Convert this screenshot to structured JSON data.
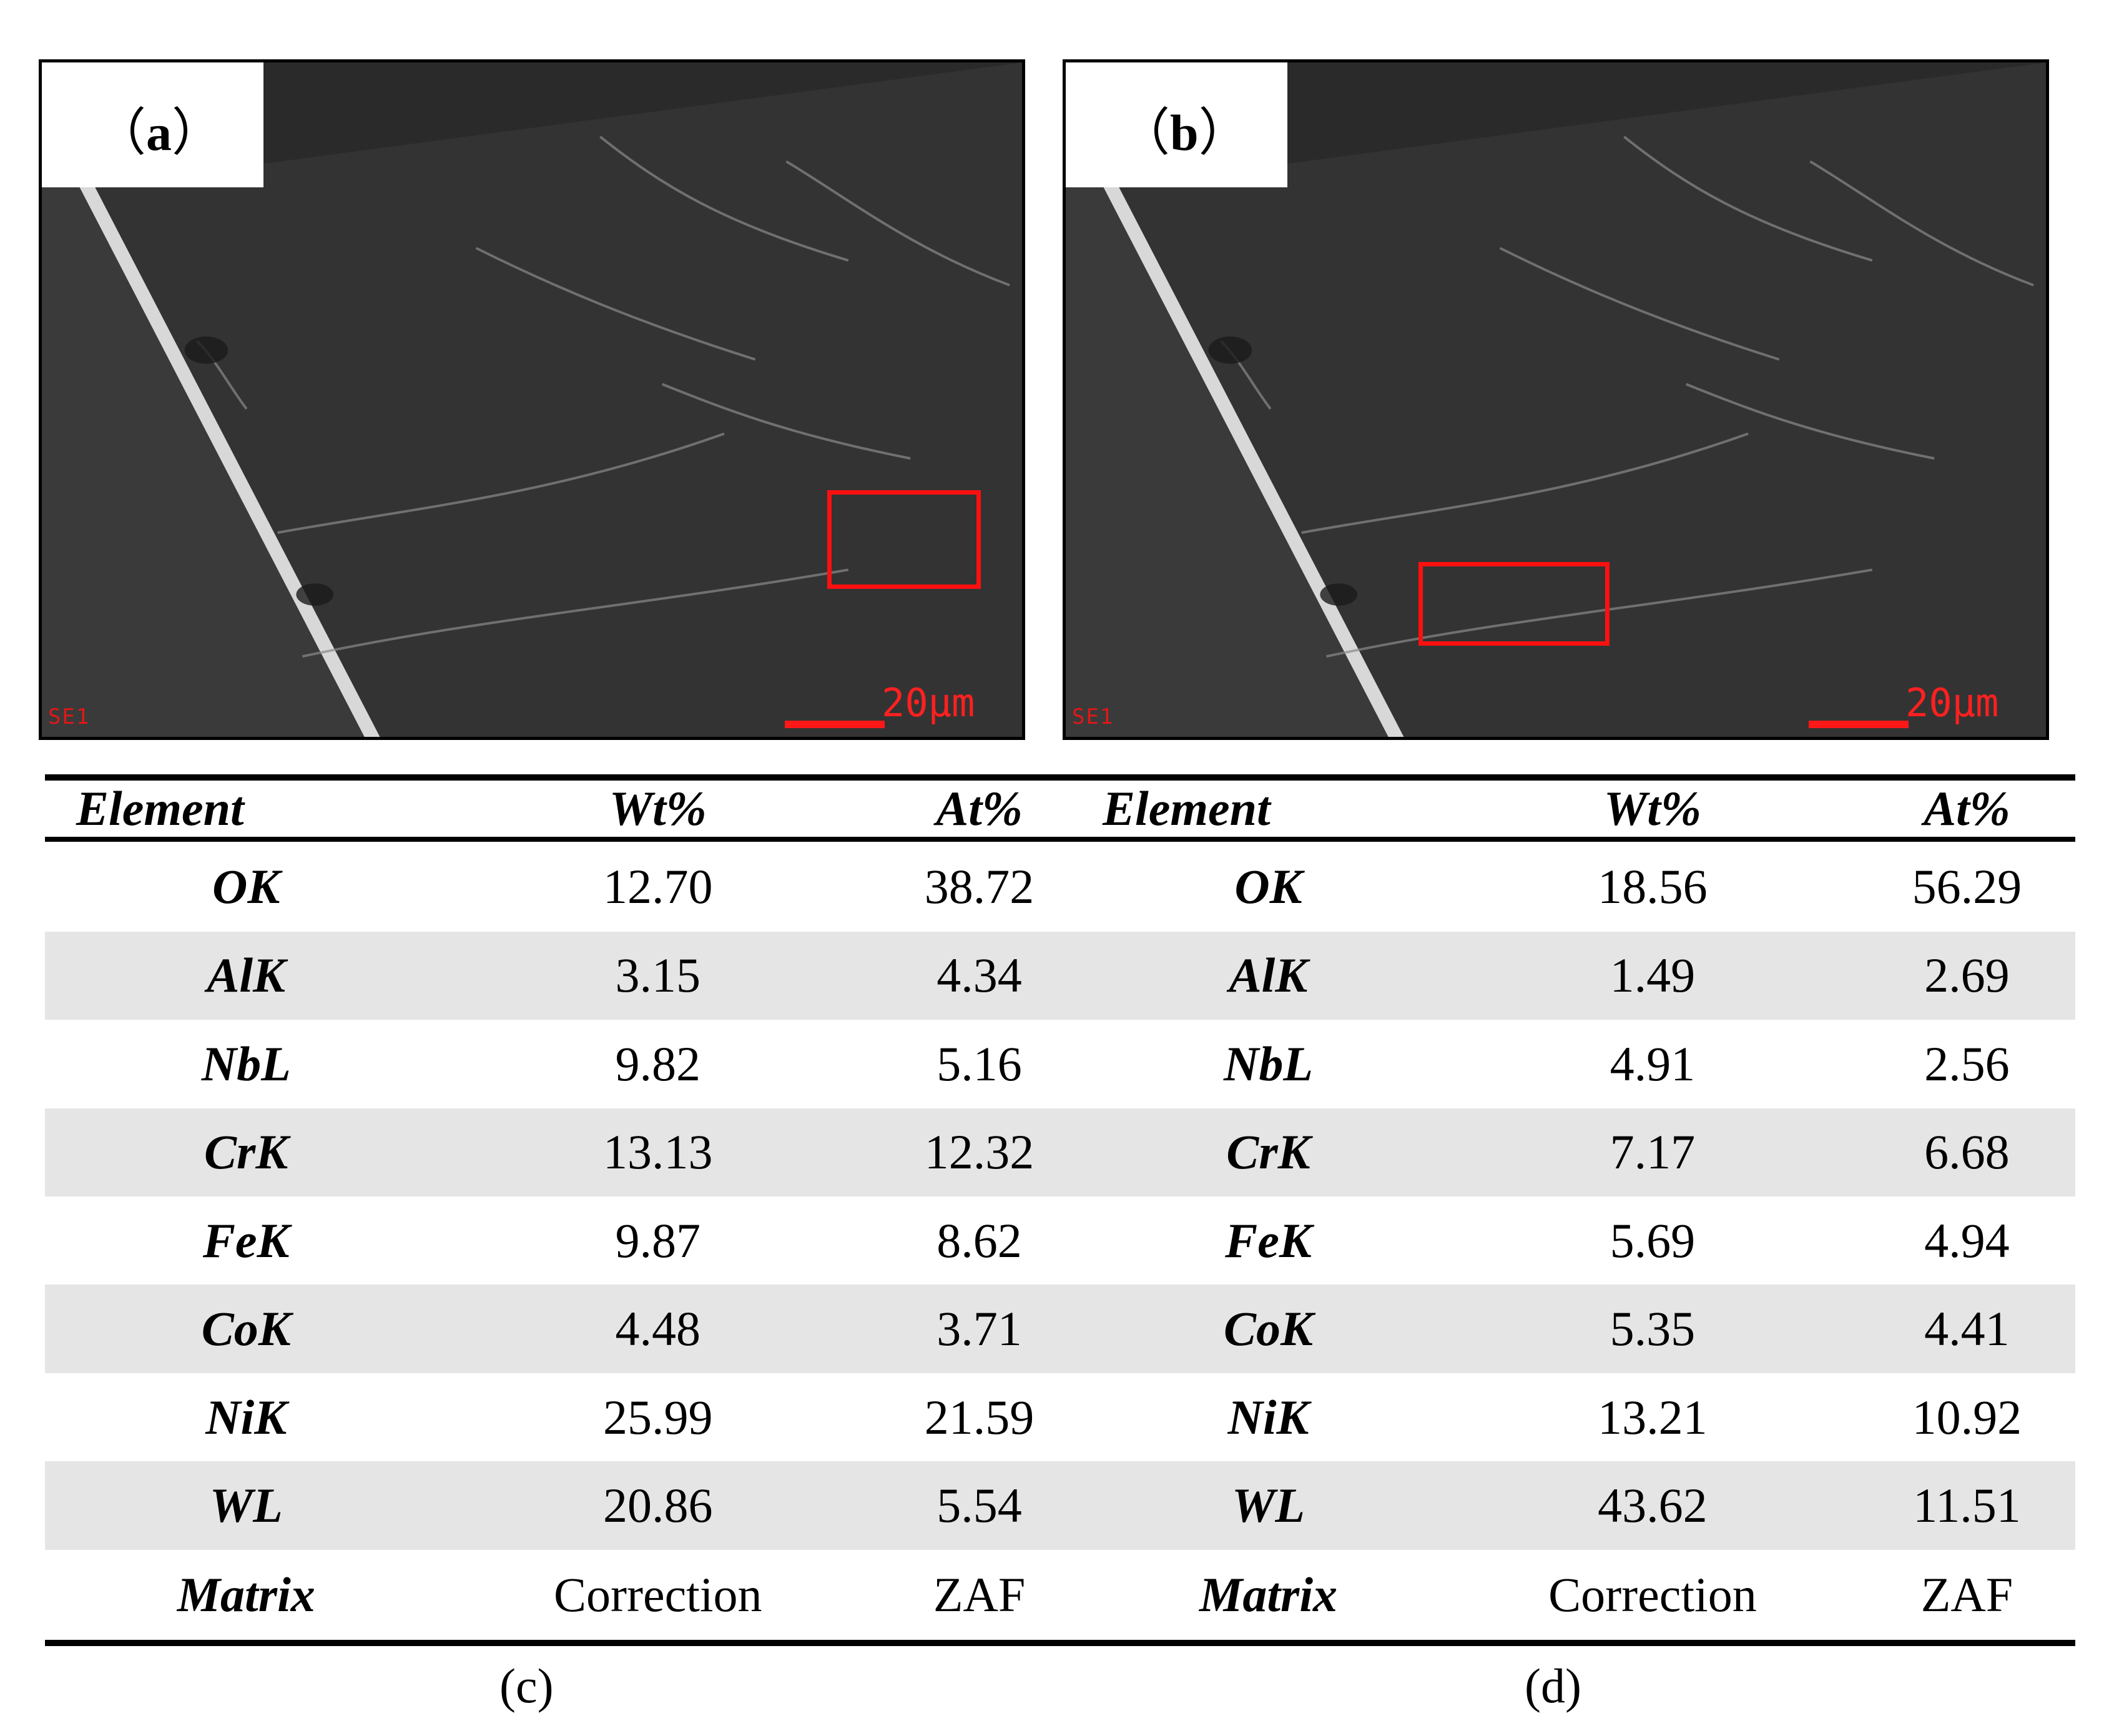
{
  "figure": {
    "panels": [
      {
        "label": "a",
        "microscope_tag": "SE1",
        "scale_label": "20μm"
      },
      {
        "label": "b",
        "microscope_tag": "SE1",
        "scale_label": "20μm"
      }
    ],
    "roi_color": "#ff1010"
  },
  "tables": [
    {
      "caption": "(c)",
      "headers": [
        "Element",
        "Wt%",
        "At%"
      ],
      "rows": [
        [
          "OK",
          "12.70",
          "38.72"
        ],
        [
          "AlK",
          "3.15",
          "4.34"
        ],
        [
          "NbL",
          "9.82",
          "5.16"
        ],
        [
          "CrK",
          "13.13",
          "12.32"
        ],
        [
          "FeK",
          "9.87",
          "8.62"
        ],
        [
          "CoK",
          "4.48",
          "3.71"
        ],
        [
          "NiK",
          "25.99",
          "21.59"
        ],
        [
          "WL",
          "20.86",
          "5.54"
        ],
        [
          "Matrix",
          "Correction",
          "ZAF"
        ]
      ]
    },
    {
      "caption": "(d)",
      "headers": [
        "Element",
        "Wt%",
        "At%"
      ],
      "rows": [
        [
          "OK",
          "18.56",
          "56.29"
        ],
        [
          "AlK",
          "1.49",
          "2.69"
        ],
        [
          "NbL",
          "4.91",
          "2.56"
        ],
        [
          "CrK",
          "7.17",
          "6.68"
        ],
        [
          "FeK",
          "5.69",
          "4.94"
        ],
        [
          "CoK",
          "5.35",
          "4.41"
        ],
        [
          "NiK",
          "13.21",
          "10.92"
        ],
        [
          "WL",
          "43.62",
          "11.51"
        ],
        [
          "Matrix",
          "Correction",
          "ZAF"
        ]
      ]
    }
  ]
}
